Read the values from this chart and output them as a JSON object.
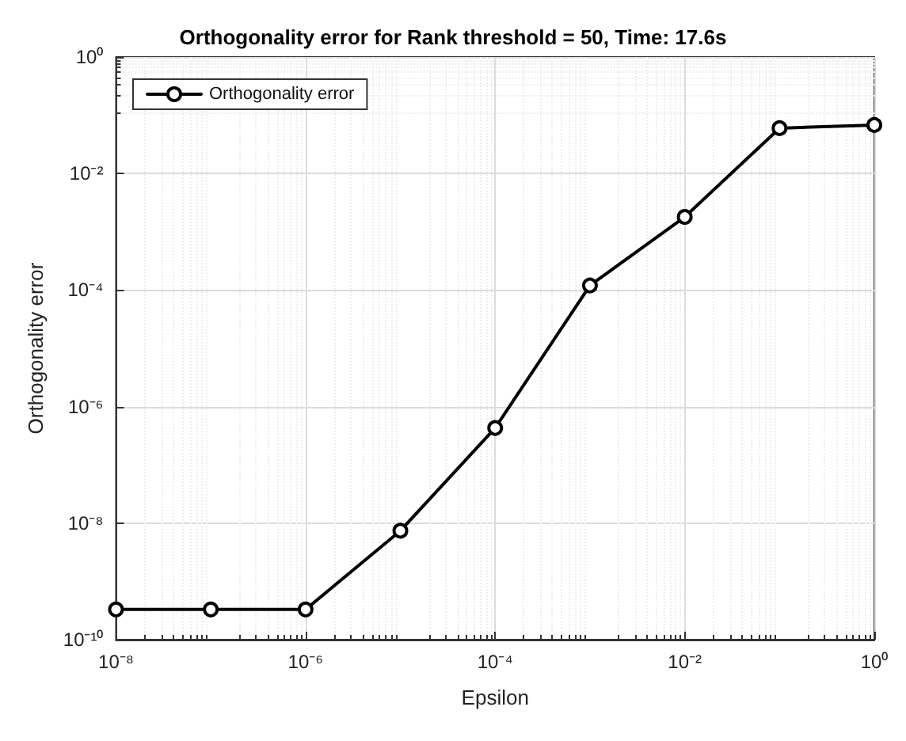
{
  "chart_data": {
    "type": "line",
    "title": "Orthogonality error for Rank threshold = 50, Time: 17.6s",
    "xlabel": "Epsilon",
    "ylabel": "Orthogonality error",
    "log": "xy",
    "x": [
      1e-08,
      1e-07,
      1e-06,
      1e-05,
      0.0001,
      0.001,
      0.01,
      0.1,
      1
    ],
    "series": [
      {
        "name": "Orthogonality error",
        "color": "#000000",
        "values": [
          3.3e-10,
          3.3e-10,
          3.3e-10,
          7.4e-09,
          4.3e-07,
          0.00012,
          0.0018,
          0.06,
          0.068
        ]
      }
    ],
    "xlim": [
      1e-08,
      1
    ],
    "ylim": [
      1e-10,
      1
    ],
    "xticks": [
      {
        "value": 1e-08,
        "label": "10⁻⁸"
      },
      {
        "value": 1e-06,
        "label": "10⁻⁶"
      },
      {
        "value": 0.0001,
        "label": "10⁻⁴"
      },
      {
        "value": 0.01,
        "label": "10⁻²"
      },
      {
        "value": 1,
        "label": "10⁰"
      }
    ],
    "yticks": [
      {
        "value": 1e-10,
        "label": "10⁻¹⁰"
      },
      {
        "value": 1e-08,
        "label": "10⁻⁸"
      },
      {
        "value": 1e-06,
        "label": "10⁻⁶"
      },
      {
        "value": 0.0001,
        "label": "10⁻⁴"
      },
      {
        "value": 0.01,
        "label": "10⁻²"
      },
      {
        "value": 1,
        "label": "10⁰"
      }
    ],
    "grid": true,
    "legend": "top left",
    "marker": "circle",
    "line_style": "solid"
  }
}
